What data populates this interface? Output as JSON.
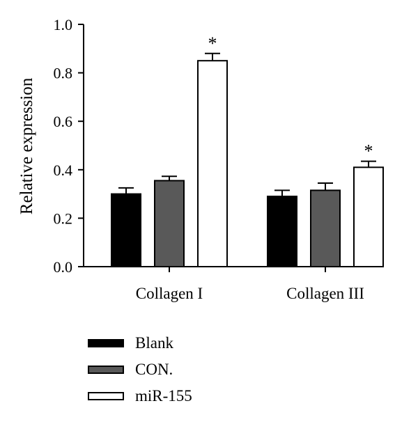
{
  "chart_data": {
    "type": "bar",
    "ylabel": "Relative expression",
    "ylim": [
      0,
      1.0
    ],
    "yticks": [
      "0.0",
      "0.2",
      "0.4",
      "0.6",
      "0.8",
      "1.0"
    ],
    "categories": [
      "Collagen I",
      "Collagen III"
    ],
    "series": [
      {
        "name": "Blank",
        "color": "#000000",
        "values": [
          0.3,
          0.29
        ],
        "errors": [
          0.025,
          0.025
        ]
      },
      {
        "name": "CON.",
        "color": "#595959",
        "values": [
          0.355,
          0.315
        ],
        "errors": [
          0.018,
          0.03
        ]
      },
      {
        "name": "miR-155",
        "color": "#ffffff",
        "values": [
          0.85,
          0.41
        ],
        "errors": [
          0.03,
          0.025
        ]
      }
    ],
    "annotations": [
      {
        "category": "Collagen I",
        "series": "miR-155",
        "text": "*"
      },
      {
        "category": "Collagen III",
        "series": "miR-155",
        "text": "*"
      }
    ],
    "legend_position": "bottom-left"
  }
}
